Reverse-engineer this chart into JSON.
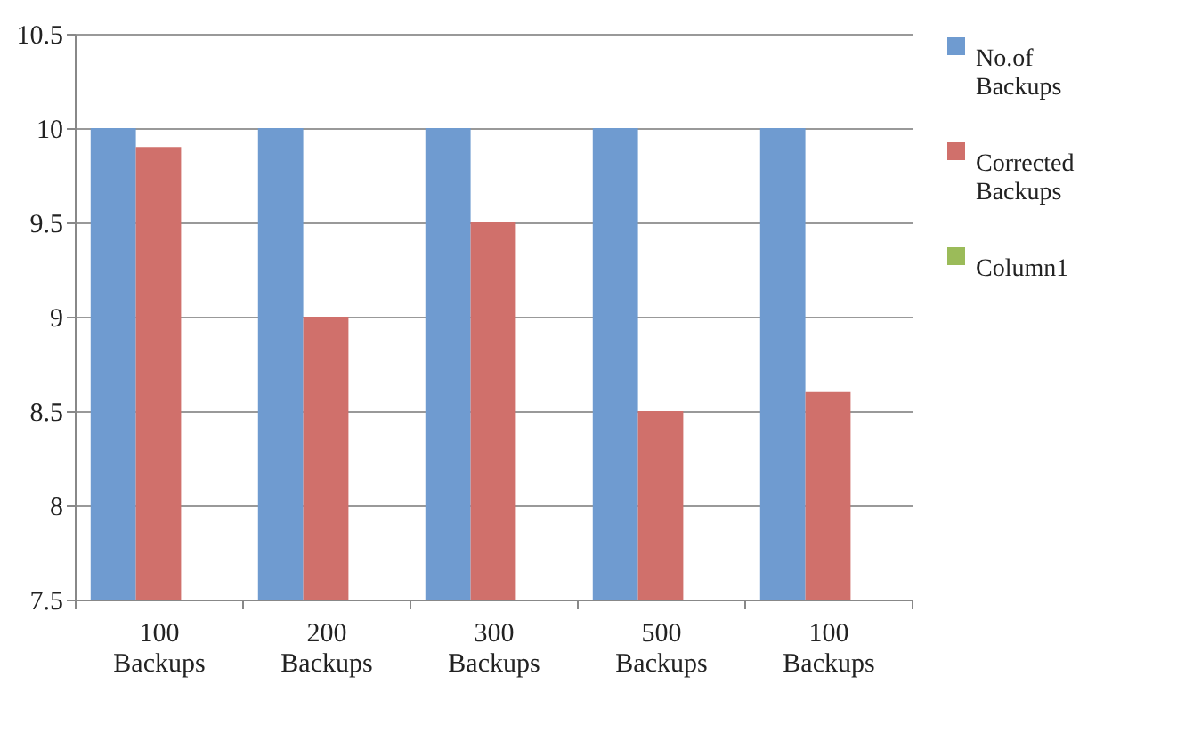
{
  "chart_data": {
    "type": "bar",
    "categories": [
      "100 Backups",
      "200 Backups",
      "300 Backups",
      "500 Backups",
      "100 Backups"
    ],
    "series": [
      {
        "name": "No.of Backups",
        "color": "#6f9bd0",
        "values": [
          10,
          10,
          10,
          10,
          10
        ]
      },
      {
        "name": "Corrected Backups",
        "color": "#d0706b",
        "values": [
          9.9,
          9.0,
          9.5,
          8.5,
          8.6
        ]
      },
      {
        "name": "Column1",
        "color": "#9bbb59",
        "values": [
          null,
          null,
          null,
          null,
          null
        ]
      }
    ],
    "ylim": [
      7.5,
      10.5
    ],
    "yticks": [
      7.5,
      8,
      8.5,
      9,
      9.5,
      10,
      10.5
    ],
    "grid": "y",
    "legend": "right"
  }
}
